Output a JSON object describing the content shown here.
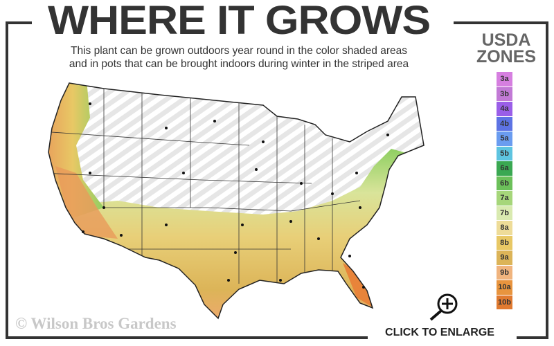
{
  "header": {
    "title": "WHERE IT GROWS",
    "subtitle_line1": "This plant can be grown outdoors year round in the color shaded areas",
    "subtitle_line2": "and in pots that can be brought indoors during winter in the striped area"
  },
  "legend": {
    "title_line1": "USDA",
    "title_line2": "ZONES",
    "zones": [
      {
        "label": "3a",
        "color": "#d67fe0"
      },
      {
        "label": "3b",
        "color": "#c27ad6"
      },
      {
        "label": "4a",
        "color": "#9a5ee8"
      },
      {
        "label": "4b",
        "color": "#5d73e4"
      },
      {
        "label": "5a",
        "color": "#6a9cf0"
      },
      {
        "label": "5b",
        "color": "#5ec4e0"
      },
      {
        "label": "6a",
        "color": "#3aa852"
      },
      {
        "label": "6b",
        "color": "#6cc05a"
      },
      {
        "label": "7a",
        "color": "#a6d67a"
      },
      {
        "label": "7b",
        "color": "#d9eab0"
      },
      {
        "label": "8a",
        "color": "#eedc98"
      },
      {
        "label": "8b",
        "color": "#e8c865"
      },
      {
        "label": "9a",
        "color": "#dcb458"
      },
      {
        "label": "9b",
        "color": "#f0b47e"
      },
      {
        "label": "10a",
        "color": "#e8943e"
      },
      {
        "label": "10b",
        "color": "#e07a30"
      }
    ]
  },
  "map": {
    "striped_area": "pots indoors during winter",
    "shaded_area": "outdoors year round"
  },
  "footer": {
    "copyright": "© Wilson Bros Gardens",
    "enlarge_label": "CLICK TO ENLARGE",
    "enlarge_icon": "magnifier-plus-icon"
  }
}
